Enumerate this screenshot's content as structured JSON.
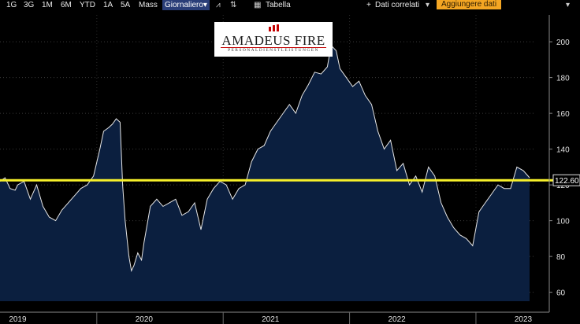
{
  "toolbar": {
    "periods": [
      "1G",
      "3G",
      "1M",
      "6M",
      "YTD",
      "1A",
      "5A",
      "Mass"
    ],
    "interval": "Giornaliero",
    "table": "Tabella",
    "related": "Dati correlati",
    "add_data": "Aggiungere dati"
  },
  "logo": {
    "name": "AMADEUS FIRE",
    "tagline": "PERSONALDIENSTLEISTUNGEN"
  },
  "colors": {
    "background": "#000000",
    "area_fill": "#0b1f3f",
    "line": "#e6e6e6",
    "ref_line": "#f7f02a",
    "accent": "#f4a623"
  },
  "chart_data": {
    "type": "area",
    "ylim": [
      55,
      215
    ],
    "yticks": [
      60,
      80,
      100,
      120,
      140,
      160,
      180,
      200
    ],
    "xlim": [
      2018.86,
      2023.1
    ],
    "x_labels": [
      "2019",
      "2020",
      "2021",
      "2022",
      "2023"
    ],
    "x_label_positions": [
      2019.0,
      2020.0,
      2021.0,
      2022.0,
      2023.0
    ],
    "reference_line": {
      "value": 122.6,
      "label": "122.60"
    },
    "series": [
      {
        "x": [
          2018.86,
          2018.9,
          2018.94,
          2018.98,
          2019.0,
          2019.05,
          2019.1,
          2019.15,
          2019.2,
          2019.25,
          2019.3,
          2019.35,
          2019.4,
          2019.45,
          2019.5,
          2019.55,
          2019.6,
          2019.65,
          2019.68,
          2019.72,
          2019.75,
          2019.78,
          2019.81,
          2019.83,
          2019.85,
          2019.88,
          2019.9,
          2019.92,
          2019.95,
          2019.98,
          2020.0,
          2020.05,
          2020.1,
          2020.15,
          2020.2,
          2020.25,
          2020.3,
          2020.35,
          2020.4,
          2020.45,
          2020.5,
          2020.55,
          2020.6,
          2020.65,
          2020.7,
          2020.75,
          2020.8,
          2020.85,
          2020.9,
          2020.95,
          2021.0,
          2021.05,
          2021.1,
          2021.15,
          2021.2,
          2021.25,
          2021.3,
          2021.35,
          2021.4,
          2021.45,
          2021.48,
          2021.52,
          2021.55,
          2021.6,
          2021.65,
          2021.7,
          2021.75,
          2021.8,
          2021.85,
          2021.9,
          2021.95,
          2022.0,
          2022.05,
          2022.1,
          2022.15,
          2022.2,
          2022.25,
          2022.3,
          2022.35,
          2022.4,
          2022.45,
          2022.5,
          2022.55,
          2022.6,
          2022.65,
          2022.7,
          2022.75,
          2022.8,
          2022.85,
          2022.9,
          2022.95,
          2023.0,
          2023.05
        ],
        "y": [
          122,
          124,
          118,
          117,
          120,
          122,
          112,
          120,
          108,
          102,
          100,
          106,
          110,
          114,
          118,
          120,
          125,
          140,
          150,
          152,
          154,
          157,
          155,
          120,
          100,
          80,
          72,
          75,
          82,
          78,
          88,
          108,
          112,
          108,
          110,
          112,
          103,
          105,
          110,
          95,
          112,
          118,
          122,
          120,
          112,
          118,
          120,
          133,
          140,
          142,
          150,
          155,
          160,
          165,
          160,
          170,
          176,
          183,
          182,
          186,
          198,
          195,
          185,
          180,
          175,
          178,
          170,
          165,
          150,
          140,
          145,
          128,
          132,
          120,
          125,
          116,
          130,
          125,
          110,
          102,
          96,
          92,
          90,
          86,
          105,
          110,
          115,
          120,
          118,
          118,
          130,
          128,
          124
        ]
      }
    ]
  }
}
